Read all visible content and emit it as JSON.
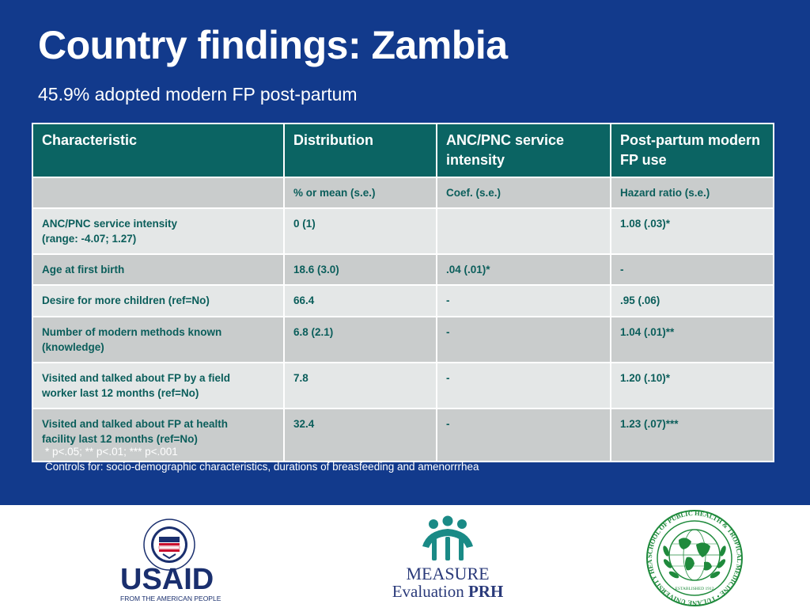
{
  "slide": {
    "title": "Country findings: Zambia",
    "subtitle": "45.9% adopted modern FP post-partum"
  },
  "table": {
    "headers": [
      "Characteristic",
      "Distribution",
      "ANC/PNC service intensity",
      "Post-partum modern FP use"
    ],
    "units": [
      "",
      "% or mean (s.e.)",
      "Coef. (s.e.)",
      "Hazard ratio (s.e.)"
    ],
    "rows": [
      {
        "characteristic": "ANC/PNC service intensity",
        "characteristic_line2": "(range: -4.07; 1.27)",
        "distribution": "0 (1)",
        "intensity": "",
        "fp_use": "1.08 (.03)*"
      },
      {
        "characteristic": "Age at first birth",
        "characteristic_line2": "",
        "distribution": "18.6 (3.0)",
        "intensity": ".04 (.01)*",
        "fp_use": "-"
      },
      {
        "characteristic": "Desire for more children (ref=No)",
        "characteristic_line2": "",
        "distribution": "66.4",
        "intensity": "-",
        "fp_use": ".95 (.06)"
      },
      {
        "characteristic": "Number of modern methods known",
        "characteristic_line2": "(knowledge)",
        "distribution": "6.8 (2.1)",
        "intensity": "-",
        "fp_use": "1.04 (.01)**"
      },
      {
        "characteristic": "Visited and talked about FP by a field",
        "characteristic_line2": "worker last 12 months (ref=No)",
        "distribution": "7.8",
        "intensity": "-",
        "fp_use": "1.20 (.10)*"
      },
      {
        "characteristic": "Visited and talked about FP at health",
        "characteristic_line2": "facility last 12 months (ref=No)",
        "distribution": "32.4",
        "intensity": "-",
        "fp_use": "1.23 (.07)***"
      }
    ]
  },
  "notes": {
    "significance": "* p<.05; ** p<.01; *** p<.001",
    "controls": "Controls for: socio-demographic characteristics, durations of breasfeeding and amenorrrhea"
  },
  "logos": {
    "usaid": {
      "seal_text": "UNITED STATES AGENCY INTERNATIONAL DEVELOPMENT",
      "wordmark": "USAID",
      "tagline": "FROM THE AMERICAN PEOPLE"
    },
    "measure": {
      "line1": "MEASURE",
      "line2_a": "Evaluation",
      "line2_b": "PRH"
    },
    "tulane": {
      "seal_text": "SCHOOL OF PUBLIC HEALTH & TROPICAL MEDICINE • TULANE UNIVERSITY HEALTH SCIENCES CENTER",
      "established": "ESTABLISHED 1912"
    }
  },
  "colors": {
    "slide_background": "#123a8c",
    "header_fill": "#0b6463",
    "row_dark": "#c9cccc",
    "row_light": "#e4e7e7",
    "cell_text": "#0b5e5b",
    "usaid_blue": "#1a2f6e",
    "usaid_red": "#c8102e",
    "measure_teal": "#1a8a86",
    "measure_navy": "#2a3a7a",
    "tulane_green": "#1f8a3c"
  }
}
